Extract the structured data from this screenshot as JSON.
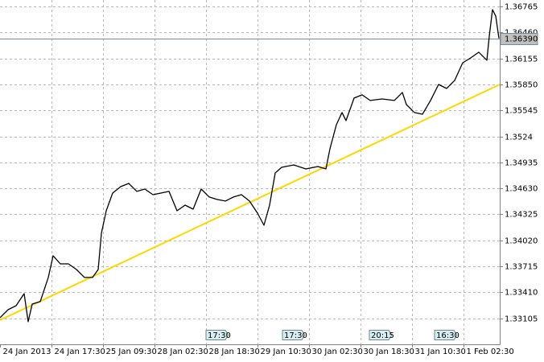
{
  "chart_data": {
    "type": "line",
    "x": [
      0,
      10,
      20,
      30,
      35,
      40,
      50,
      60,
      66,
      75,
      85,
      95,
      105,
      115,
      122,
      126,
      132,
      140,
      150,
      160,
      170,
      180,
      190,
      200,
      210,
      220,
      230,
      240,
      250,
      260,
      270,
      280,
      290,
      300,
      310,
      320,
      328,
      335,
      342,
      350,
      365,
      380,
      395,
      405,
      410,
      418,
      425,
      430,
      440,
      450,
      460,
      475,
      490,
      500,
      505,
      515,
      525,
      535,
      545,
      555,
      565,
      575,
      585,
      595,
      605,
      608,
      612,
      616,
      620
    ],
    "series": [
      {
        "color": "#000000",
        "values": [
          1.33112,
          1.33206,
          1.33253,
          1.33395,
          1.33065,
          1.33272,
          1.33301,
          1.33584,
          1.33839,
          1.33744,
          1.33744,
          1.33678,
          1.33584,
          1.33584,
          1.33678,
          1.34103,
          1.34367,
          1.34575,
          1.3465,
          1.34688,
          1.34594,
          1.34622,
          1.34556,
          1.34575,
          1.34594,
          1.34367,
          1.34433,
          1.34386,
          1.34622,
          1.34528,
          1.34499,
          1.34481,
          1.34528,
          1.34556,
          1.34481,
          1.34339,
          1.34197,
          1.34433,
          1.34811,
          1.34877,
          1.34905,
          1.34858,
          1.34886,
          1.34858,
          1.35094,
          1.35377,
          1.35519,
          1.35425,
          1.35689,
          1.35727,
          1.35661,
          1.35679,
          1.35661,
          1.35755,
          1.35613,
          1.35519,
          1.355,
          1.35661,
          1.35849,
          1.35802,
          1.35897,
          1.36104,
          1.36161,
          1.36227,
          1.36133,
          1.36416,
          1.36727,
          1.36652,
          1.3639
        ]
      }
    ],
    "trendline": {
      "x": [
        0,
        621
      ],
      "values": [
        1.33083,
        1.35849
      ],
      "color": "#ffd700"
    },
    "current_price": {
      "value": 1.3639,
      "label": "1.36390"
    },
    "xlim": [
      0,
      621
    ],
    "ylim": [
      1.328,
      1.3684
    ],
    "xticks": [
      {
        "value": 0,
        "label": "24 Jan 2013"
      },
      {
        "value": 64,
        "label": "24 Jan 17:30"
      },
      {
        "value": 128,
        "label": "25 Jan 09:30"
      },
      {
        "value": 192,
        "label": "28 Jan 02:30"
      },
      {
        "value": 256,
        "label": "28 Jan 18:30"
      },
      {
        "value": 320,
        "label": "29 Jan 10:30"
      },
      {
        "value": 384,
        "label": "30 Jan 02:30"
      },
      {
        "value": 448,
        "label": "30 Jan 18:30"
      },
      {
        "value": 512,
        "label": "31 Jan 10:30"
      },
      {
        "value": 576,
        "label": "1 Feb 02:30"
      }
    ],
    "yticks": [
      1.36765,
      {
        "value": 1.3646,
        "label": "1.36460"
      },
      1.36155,
      {
        "value": 1.3585,
        "label": "1.35850"
      },
      1.35545,
      1.3524,
      1.34935,
      {
        "value": 1.3463,
        "label": "1.34630"
      },
      1.34325,
      {
        "value": 1.3402,
        "label": "1.34020"
      },
      1.33715,
      {
        "value": 1.3341,
        "label": "1.33410"
      },
      1.33105
    ],
    "events": [
      {
        "x": 256,
        "label": "17:30"
      },
      {
        "x": 351,
        "label": "17:30"
      },
      {
        "x": 459,
        "label": "20:15"
      },
      {
        "x": 540,
        "label": "16:30"
      }
    ],
    "grid": true
  }
}
